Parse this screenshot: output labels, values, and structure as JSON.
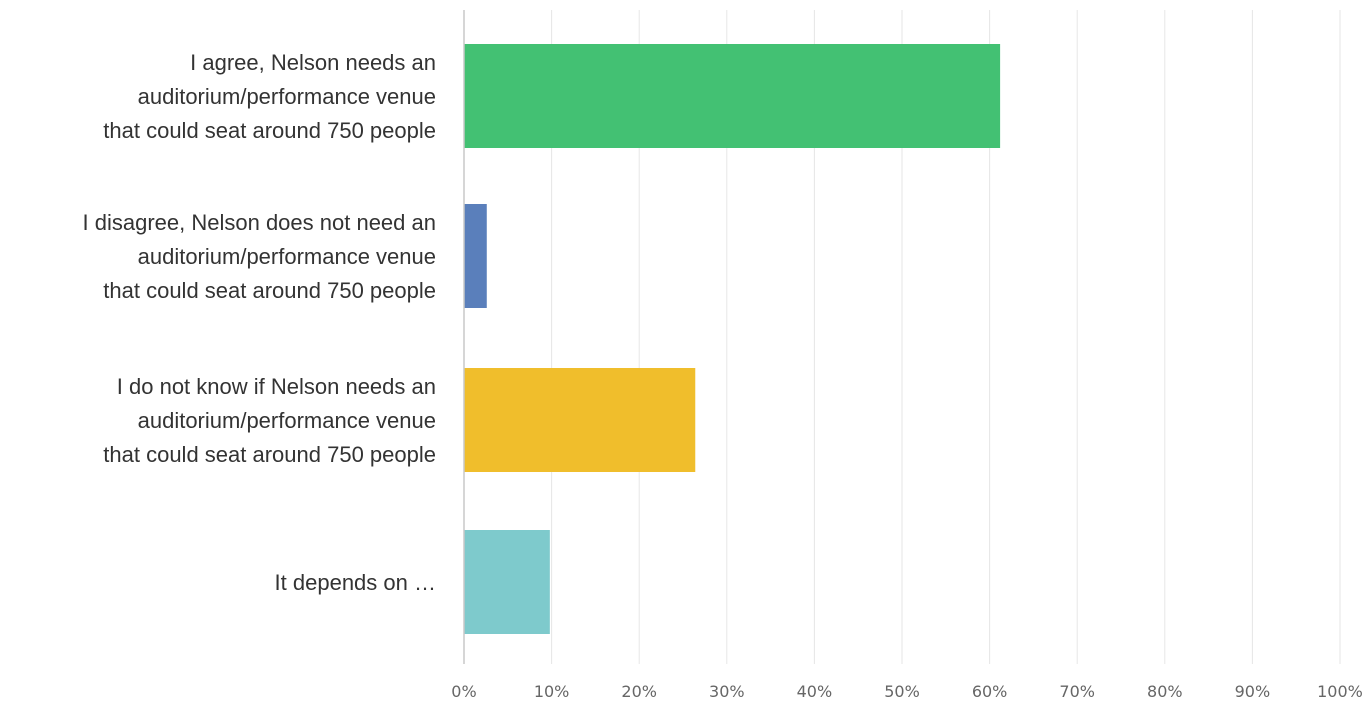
{
  "chart_data": {
    "type": "bar",
    "orientation": "horizontal",
    "categories": [
      [
        "I agree, Nelson needs an",
        "auditorium/performance venue",
        "that could seat around 750 people"
      ],
      [
        "I disagree, Nelson does not need an",
        "auditorium/performance venue",
        "that could seat around 750 people"
      ],
      [
        "I do not know if Nelson needs an",
        "auditorium/performance venue",
        "that could seat around 750 people"
      ],
      [
        "It depends on …"
      ]
    ],
    "values": [
      61.2,
      2.6,
      26.4,
      9.8
    ],
    "colors": [
      "#43c173",
      "#5a7fbb",
      "#f0be2c",
      "#7ecacc"
    ],
    "xlim": [
      0,
      100
    ],
    "x_ticks": [
      "0%",
      "10%",
      "20%",
      "30%",
      "40%",
      "50%",
      "60%",
      "70%",
      "80%",
      "90%",
      "100%"
    ],
    "grid": true,
    "title": "",
    "xlabel": "",
    "ylabel": ""
  }
}
